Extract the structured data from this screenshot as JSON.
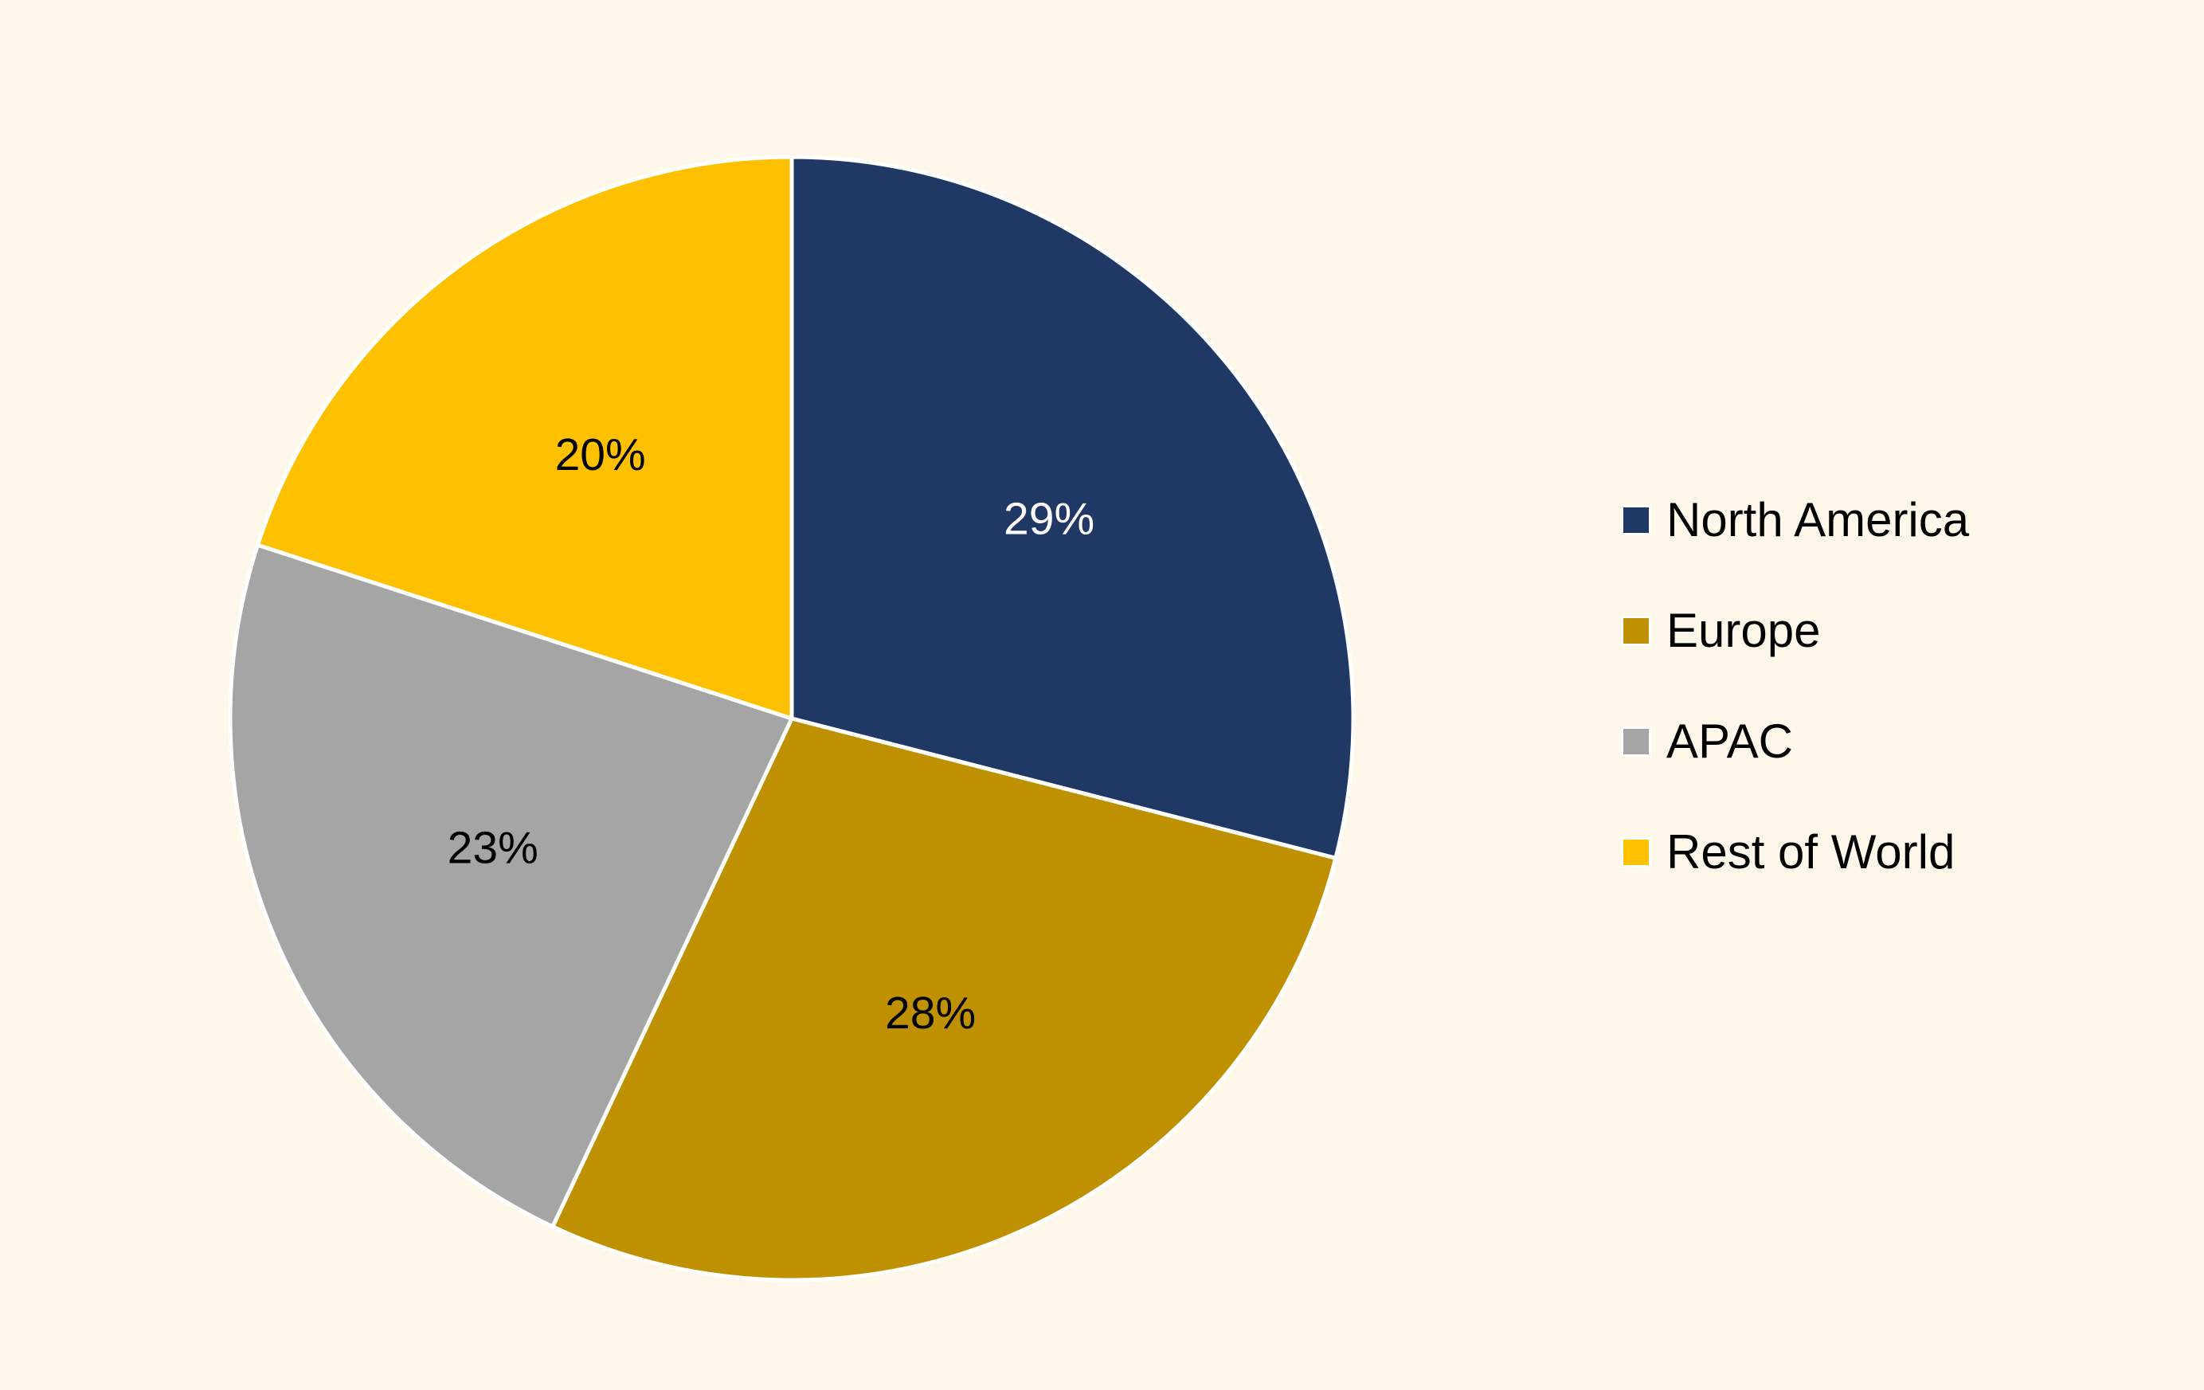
{
  "chart_data": {
    "type": "pie",
    "start_angle_deg": 0,
    "direction": "clockwise",
    "slice_border_color": "#FFFFFF",
    "legend_position": "right",
    "slices": [
      {
        "label": "North America",
        "value": 29,
        "value_label": "29%",
        "color": "#203864",
        "label_color": "#FFFFFF"
      },
      {
        "label": "Europe",
        "value": 28,
        "value_label": "28%",
        "color": "#BF9000",
        "label_color": "#000000"
      },
      {
        "label": "APAC",
        "value": 23,
        "value_label": "23%",
        "color": "#A5A5A5",
        "label_color": "#000000"
      },
      {
        "label": "Rest of World",
        "value": 20,
        "value_label": "20%",
        "color": "#FFC000",
        "label_color": "#000000"
      }
    ]
  },
  "colors": {
    "background": "#FFF7EA"
  }
}
